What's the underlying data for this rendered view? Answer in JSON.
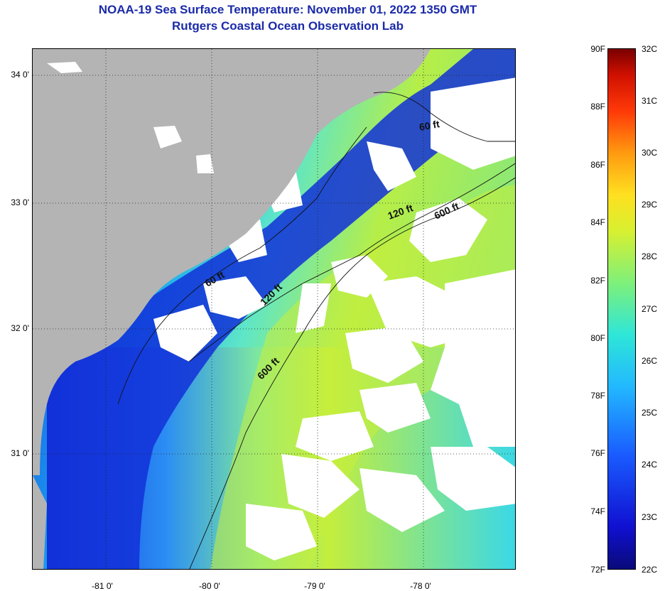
{
  "title": {
    "line1": "NOAA-19 Sea Surface Temperature:  November 01, 2022 1350 GMT",
    "line2": "Rutgers Coastal Ocean Observation Lab"
  },
  "map": {
    "y_ticks": [
      "34 0'",
      "33 0'",
      "32 0'",
      "31 0'"
    ],
    "x_ticks": [
      "-81 0'",
      "-80 0'",
      "-79 0'",
      "-78 0'"
    ],
    "contour_labels": {
      "c60_north": "60 ft",
      "c60_south": "60 ft",
      "c120_north": "120 ft",
      "c120_south": "120 ft",
      "c600_north": "600 ft",
      "c600_south": "600 ft"
    }
  },
  "colorbar": {
    "fahrenheit": [
      "90F",
      "88F",
      "86F",
      "84F",
      "82F",
      "80F",
      "78F",
      "76F",
      "74F",
      "72F"
    ],
    "celsius": [
      "32C",
      "31C",
      "30C",
      "29C",
      "28C",
      "27C",
      "26C",
      "25C",
      "24C",
      "23C",
      "22C"
    ]
  },
  "colors": {
    "title": "#1a2aa8",
    "land": "#b4b4b4"
  }
}
